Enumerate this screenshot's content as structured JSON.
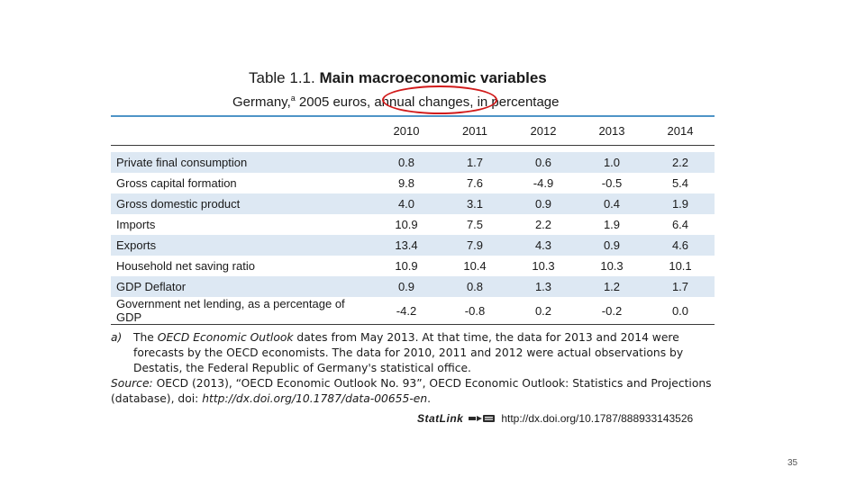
{
  "title": {
    "prefix": "Table 1.1.",
    "main": "Main macroeconomic variables"
  },
  "subtitle": {
    "country": "Germany,",
    "footnote_mark": "a",
    "rest": " 2005 euros, annual changes, in percentage"
  },
  "highlight_color": "#d11a1a",
  "table": {
    "header_color": "#4f94c7",
    "shade_color": "#dde8f3",
    "columns": [
      "",
      "2010",
      "2011",
      "2012",
      "2013",
      "2014"
    ],
    "rows": [
      {
        "label": "Private final consumption",
        "values": [
          "0.8",
          "1.7",
          "0.6",
          "1.0",
          "2.2"
        ]
      },
      {
        "label": "Gross capital formation",
        "values": [
          "9.8",
          "7.6",
          "-4.9",
          "-0.5",
          "5.4"
        ]
      },
      {
        "label": "Gross domestic product",
        "values": [
          "4.0",
          "3.1",
          "0.9",
          "0.4",
          "1.9"
        ]
      },
      {
        "label": "Imports",
        "values": [
          "10.9",
          "7.5",
          "2.2",
          "1.9",
          "6.4"
        ]
      },
      {
        "label": "Exports",
        "values": [
          "13.4",
          "7.9",
          "4.3",
          "0.9",
          "4.6"
        ]
      },
      {
        "label": "Household net saving ratio",
        "values": [
          "10.9",
          "10.4",
          "10.3",
          "10.3",
          "10.1"
        ]
      },
      {
        "label": "GDP Deflator",
        "values": [
          "0.9",
          "0.8",
          "1.3",
          "1.2",
          "1.7"
        ]
      },
      {
        "label": "Government net lending, as a percentage of GDP",
        "values": [
          "-4.2",
          "-0.8",
          "0.2",
          "-0.2",
          "0.0"
        ]
      }
    ]
  },
  "notes": {
    "a_marker": "a)",
    "a_pre": "The ",
    "a_italic": "OECD Economic Outlook",
    "a_post": " dates from May 2013. At that time, the data for 2013 and 2014 were forecasts by the OECD economists. The data for 2010, 2011 and 2012 were actual observations by Destatis, the Federal Republic of Germany's statistical office.",
    "source_label": "Source:",
    "source_text": " OECD (2013), “OECD Economic Outlook No. 93”, OECD Economic Outlook: Statistics and Projections (database), doi: ",
    "source_doi": "http://dx.doi.org/10.1787/data-00655-en",
    "source_end": "."
  },
  "statlink": {
    "label": "StatLink",
    "url": "http://dx.doi.org/10.1787/888933143526"
  },
  "page_number": "35"
}
